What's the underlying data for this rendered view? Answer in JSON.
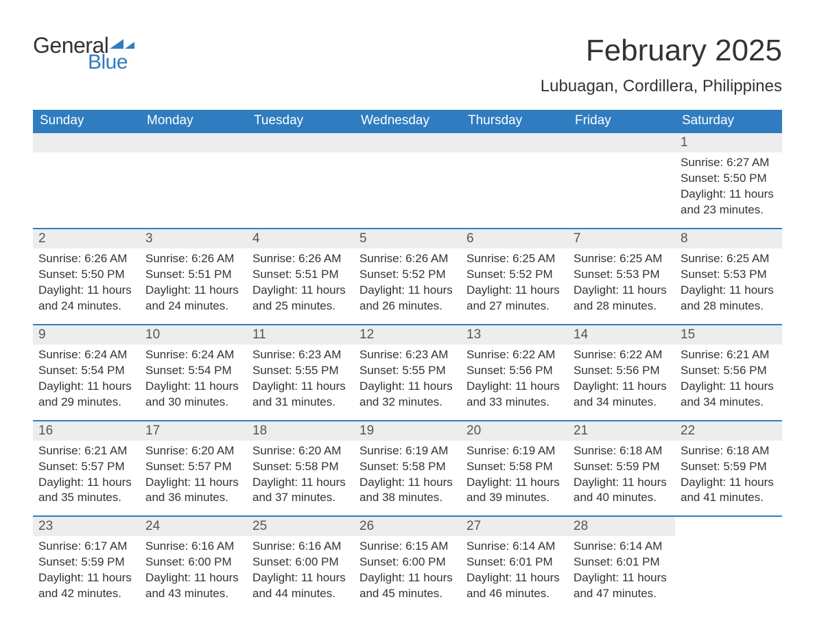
{
  "logo": {
    "text1": "General",
    "text2": "Blue",
    "flag_color": "#2f7cc0"
  },
  "title": "February 2025",
  "location": "Lubuagan, Cordillera, Philippines",
  "colors": {
    "header_bg": "#2f7cc0",
    "header_text": "#ffffff",
    "daynum_bg": "#ededed",
    "row_border": "#2f7cc0",
    "text": "#333333"
  },
  "weekdays": [
    "Sunday",
    "Monday",
    "Tuesday",
    "Wednesday",
    "Thursday",
    "Friday",
    "Saturday"
  ],
  "weeks": [
    [
      null,
      null,
      null,
      null,
      null,
      null,
      {
        "n": "1",
        "sunrise": "Sunrise: 6:27 AM",
        "sunset": "Sunset: 5:50 PM",
        "daylight": "Daylight: 11 hours and 23 minutes."
      }
    ],
    [
      {
        "n": "2",
        "sunrise": "Sunrise: 6:26 AM",
        "sunset": "Sunset: 5:50 PM",
        "daylight": "Daylight: 11 hours and 24 minutes."
      },
      {
        "n": "3",
        "sunrise": "Sunrise: 6:26 AM",
        "sunset": "Sunset: 5:51 PM",
        "daylight": "Daylight: 11 hours and 24 minutes."
      },
      {
        "n": "4",
        "sunrise": "Sunrise: 6:26 AM",
        "sunset": "Sunset: 5:51 PM",
        "daylight": "Daylight: 11 hours and 25 minutes."
      },
      {
        "n": "5",
        "sunrise": "Sunrise: 6:26 AM",
        "sunset": "Sunset: 5:52 PM",
        "daylight": "Daylight: 11 hours and 26 minutes."
      },
      {
        "n": "6",
        "sunrise": "Sunrise: 6:25 AM",
        "sunset": "Sunset: 5:52 PM",
        "daylight": "Daylight: 11 hours and 27 minutes."
      },
      {
        "n": "7",
        "sunrise": "Sunrise: 6:25 AM",
        "sunset": "Sunset: 5:53 PM",
        "daylight": "Daylight: 11 hours and 28 minutes."
      },
      {
        "n": "8",
        "sunrise": "Sunrise: 6:25 AM",
        "sunset": "Sunset: 5:53 PM",
        "daylight": "Daylight: 11 hours and 28 minutes."
      }
    ],
    [
      {
        "n": "9",
        "sunrise": "Sunrise: 6:24 AM",
        "sunset": "Sunset: 5:54 PM",
        "daylight": "Daylight: 11 hours and 29 minutes."
      },
      {
        "n": "10",
        "sunrise": "Sunrise: 6:24 AM",
        "sunset": "Sunset: 5:54 PM",
        "daylight": "Daylight: 11 hours and 30 minutes."
      },
      {
        "n": "11",
        "sunrise": "Sunrise: 6:23 AM",
        "sunset": "Sunset: 5:55 PM",
        "daylight": "Daylight: 11 hours and 31 minutes."
      },
      {
        "n": "12",
        "sunrise": "Sunrise: 6:23 AM",
        "sunset": "Sunset: 5:55 PM",
        "daylight": "Daylight: 11 hours and 32 minutes."
      },
      {
        "n": "13",
        "sunrise": "Sunrise: 6:22 AM",
        "sunset": "Sunset: 5:56 PM",
        "daylight": "Daylight: 11 hours and 33 minutes."
      },
      {
        "n": "14",
        "sunrise": "Sunrise: 6:22 AM",
        "sunset": "Sunset: 5:56 PM",
        "daylight": "Daylight: 11 hours and 34 minutes."
      },
      {
        "n": "15",
        "sunrise": "Sunrise: 6:21 AM",
        "sunset": "Sunset: 5:56 PM",
        "daylight": "Daylight: 11 hours and 34 minutes."
      }
    ],
    [
      {
        "n": "16",
        "sunrise": "Sunrise: 6:21 AM",
        "sunset": "Sunset: 5:57 PM",
        "daylight": "Daylight: 11 hours and 35 minutes."
      },
      {
        "n": "17",
        "sunrise": "Sunrise: 6:20 AM",
        "sunset": "Sunset: 5:57 PM",
        "daylight": "Daylight: 11 hours and 36 minutes."
      },
      {
        "n": "18",
        "sunrise": "Sunrise: 6:20 AM",
        "sunset": "Sunset: 5:58 PM",
        "daylight": "Daylight: 11 hours and 37 minutes."
      },
      {
        "n": "19",
        "sunrise": "Sunrise: 6:19 AM",
        "sunset": "Sunset: 5:58 PM",
        "daylight": "Daylight: 11 hours and 38 minutes."
      },
      {
        "n": "20",
        "sunrise": "Sunrise: 6:19 AM",
        "sunset": "Sunset: 5:58 PM",
        "daylight": "Daylight: 11 hours and 39 minutes."
      },
      {
        "n": "21",
        "sunrise": "Sunrise: 6:18 AM",
        "sunset": "Sunset: 5:59 PM",
        "daylight": "Daylight: 11 hours and 40 minutes."
      },
      {
        "n": "22",
        "sunrise": "Sunrise: 6:18 AM",
        "sunset": "Sunset: 5:59 PM",
        "daylight": "Daylight: 11 hours and 41 minutes."
      }
    ],
    [
      {
        "n": "23",
        "sunrise": "Sunrise: 6:17 AM",
        "sunset": "Sunset: 5:59 PM",
        "daylight": "Daylight: 11 hours and 42 minutes."
      },
      {
        "n": "24",
        "sunrise": "Sunrise: 6:16 AM",
        "sunset": "Sunset: 6:00 PM",
        "daylight": "Daylight: 11 hours and 43 minutes."
      },
      {
        "n": "25",
        "sunrise": "Sunrise: 6:16 AM",
        "sunset": "Sunset: 6:00 PM",
        "daylight": "Daylight: 11 hours and 44 minutes."
      },
      {
        "n": "26",
        "sunrise": "Sunrise: 6:15 AM",
        "sunset": "Sunset: 6:00 PM",
        "daylight": "Daylight: 11 hours and 45 minutes."
      },
      {
        "n": "27",
        "sunrise": "Sunrise: 6:14 AM",
        "sunset": "Sunset: 6:01 PM",
        "daylight": "Daylight: 11 hours and 46 minutes."
      },
      {
        "n": "28",
        "sunrise": "Sunrise: 6:14 AM",
        "sunset": "Sunset: 6:01 PM",
        "daylight": "Daylight: 11 hours and 47 minutes."
      },
      null
    ]
  ]
}
